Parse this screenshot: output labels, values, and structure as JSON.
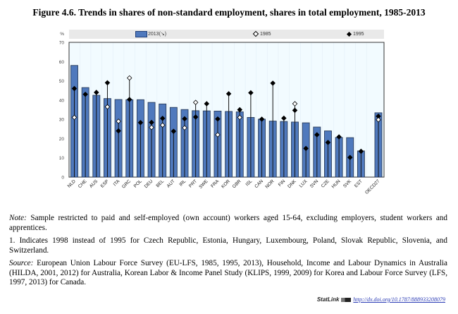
{
  "figure": {
    "title": "Figure 4.6. Trends in shares of non-standard employment, shares in total employment, 1985-2013"
  },
  "chart_data": {
    "type": "bar",
    "title": "Figure 4.6. Trends in shares of non-standard employment, shares in total employment, 1985-2013",
    "xlabel": "",
    "ylabel": "%",
    "ylim": [
      0,
      70
    ],
    "yticks": [
      0,
      10,
      20,
      30,
      40,
      50,
      60,
      70
    ],
    "grid": false,
    "legend_position": "top",
    "categories": [
      "NLD",
      "CHE",
      "AUS",
      "ESP",
      "ITA",
      "GRC",
      "POL",
      "DEU",
      "BEL",
      "AUT",
      "IRL",
      "PRT",
      "SWE",
      "FRA",
      "KOR",
      "GBR",
      "ISL",
      "CAN",
      "NOR",
      "FIN",
      "DNK",
      "LUX",
      "SVN",
      "CZE",
      "HUN",
      "SVK",
      "EST",
      "OECD27"
    ],
    "series": [
      {
        "name": "2013(↘)",
        "kind": "bar",
        "color": "#4f79bd",
        "values": [
          58.0,
          46.5,
          42.5,
          40.8,
          40.3,
          40.2,
          40.2,
          38.8,
          38.0,
          36.2,
          35.1,
          34.5,
          34.4,
          34.3,
          34.1,
          33.9,
          31.0,
          30.1,
          29.1,
          28.9,
          28.6,
          28.2,
          26.0,
          24.0,
          20.6,
          20.5,
          13.6,
          33.4
        ]
      },
      {
        "name": "1985",
        "kind": "marker-open-diamond",
        "color": "#ffffff",
        "values": [
          31.0,
          null,
          null,
          36.5,
          29.0,
          51.5,
          null,
          25.8,
          27.0,
          null,
          25.6,
          38.8,
          null,
          22.0,
          null,
          31.0,
          null,
          null,
          null,
          null,
          38.1,
          null,
          null,
          null,
          null,
          null,
          null,
          29.8
        ]
      },
      {
        "name": "1995",
        "kind": "marker-filled-diamond",
        "color": "#000000",
        "values": [
          46.0,
          43.0,
          44.0,
          49.0,
          24.0,
          40.3,
          28.3,
          28.4,
          30.5,
          23.8,
          30.3,
          31.2,
          38.1,
          30.2,
          43.3,
          35.0,
          43.8,
          30.1,
          48.8,
          30.6,
          34.7,
          14.9,
          22.0,
          18.0,
          20.9,
          10.2,
          13.4,
          31.6
        ]
      }
    ]
  },
  "legend": {
    "items": [
      {
        "label": "2013(↘)"
      },
      {
        "label": "1985"
      },
      {
        "label": "1995"
      }
    ]
  },
  "notes": {
    "note_label": "Note:",
    "note_text": " Sample restricted to paid and self-employed (own account) workers aged 15-64, excluding employers, student workers and apprentices.",
    "footnote_1": "1. Indicates 1998 instead of 1995 for Czech Republic, Estonia, Hungary, Luxembourg, Poland, Slovak Republic, Slovenia, and Switzerland.",
    "source_label": "Source:",
    "source_text": " European Union Labour Force Survey (EU-LFS, 1985, 1995, 2013), Household, Income and Labour Dynamics in Australia (HILDA, 2001, 2012) for Australia, Korean Labor & Income Panel Study (KLIPS, 1999, 2009) for Korea and Labour Force Survey (LFS, 1997, 2013) for Canada."
  },
  "statlink": {
    "brand": "StatLink",
    "url": "http://dx.doi.org/10.1787/888933208079"
  }
}
